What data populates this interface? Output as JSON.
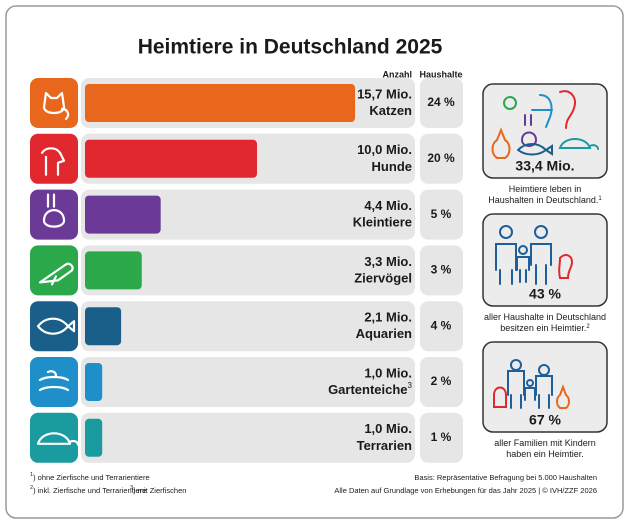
{
  "chart_data": {
    "type": "bar",
    "title": "Heimtiere in Deutschland 2025",
    "value_header": "Anzahl",
    "categories": [
      "Katzen",
      "Hunde",
      "Kleintiere",
      "Ziervögel",
      "Aquarien",
      "Gartenteiche",
      "Terrarien"
    ],
    "category_notes": [
      null,
      null,
      null,
      null,
      null,
      "3",
      null
    ],
    "values": [
      15.7,
      10.0,
      4.4,
      3.3,
      2.1,
      1.0,
      1.0
    ],
    "value_labels": [
      "15,7 Mio.",
      "10,0 Mio.",
      "4,4 Mio.",
      "3,3 Mio.",
      "2,1 Mio.",
      "1,0 Mio.",
      "1,0 Mio."
    ],
    "colors": [
      "#e8671c",
      "#e0282e",
      "#6b3a96",
      "#2aa84a",
      "#1a5f8a",
      "#1e8fc8",
      "#1a9ba0"
    ],
    "households": {
      "name": "Haushalte",
      "values": [
        24,
        20,
        5,
        3,
        4,
        2,
        1
      ],
      "value_labels": [
        "24 %",
        "20 %",
        "5 %",
        "3 %",
        "4 %",
        "2 %",
        "1 %"
      ]
    }
  },
  "sidebar": [
    {
      "figure": "33,4 Mio.",
      "lines": [
        "Heimtiere leben in",
        "Haushalten in Deutschland."
      ],
      "note": "1"
    },
    {
      "figure": "43 %",
      "lines": [
        "aller Haushalte in Deutschland",
        "besitzen ein Heimtier."
      ],
      "note": "2"
    },
    {
      "figure": "67 %",
      "lines": [
        "aller Familien mit Kindern",
        "haben ein Heimtier."
      ],
      "note": null
    }
  ],
  "footnotes": [
    {
      "mark": "1",
      "text": ") ohne Zierfische und Terrarientiere"
    },
    {
      "mark": "2",
      "text": ") inkl. Zierfische und Terrarientiere"
    },
    {
      "mark": "3",
      "text": ") mit Zierfischen"
    }
  ],
  "source": [
    "Basis: Repräsentative Befragung bei 5.000 Haushalten",
    "Alle Daten auf Grundlage von Erhebungen für das Jahr 2025 | © IVH/ZZF 2026"
  ]
}
